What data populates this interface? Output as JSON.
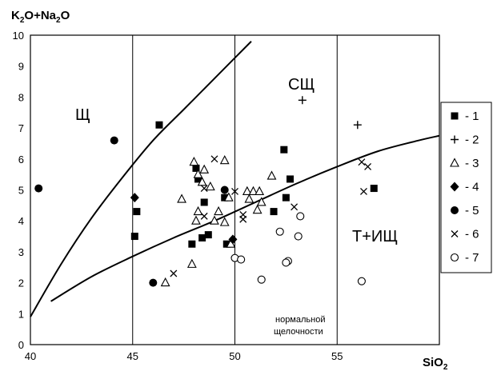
{
  "chart_data": {
    "type": "scatter",
    "ylabel": {
      "main": "K",
      "sub1": "2",
      "mid": "O+Na",
      "sub2": "2",
      "end": "O"
    },
    "xlabel": {
      "main": "SiO",
      "sub": "2"
    },
    "xlim": [
      40,
      60
    ],
    "ylim": [
      0,
      10
    ],
    "x_ticks": [
      "40",
      "45",
      "50",
      "55"
    ],
    "y_ticks": [
      "0",
      "1",
      "2",
      "3",
      "4",
      "5",
      "6",
      "7",
      "8",
      "9",
      "10"
    ],
    "grid": "vertical lines at 45, 50, 55",
    "regions": {
      "shch": "Щ",
      "sshch": "СЩ",
      "tishch": "Т+ИЩ",
      "normal_line1": "нормальной",
      "normal_line2": "щелочности"
    },
    "curves": [
      {
        "points": [
          [
            40.0,
            0.9
          ],
          [
            41.5,
            2.6
          ],
          [
            43.0,
            4.1
          ],
          [
            44.5,
            5.4
          ],
          [
            46.0,
            6.6
          ],
          [
            47.5,
            7.6
          ],
          [
            49.0,
            8.6
          ],
          [
            50.8,
            9.8
          ]
        ]
      },
      {
        "points": [
          [
            41.0,
            1.4
          ],
          [
            43.0,
            2.2
          ],
          [
            45.0,
            2.85
          ],
          [
            47.0,
            3.45
          ],
          [
            49.0,
            4.0
          ],
          [
            51.0,
            4.6
          ],
          [
            53.0,
            5.2
          ],
          [
            55.0,
            5.75
          ],
          [
            57.0,
            6.25
          ],
          [
            59.0,
            6.6
          ],
          [
            60.0,
            6.75
          ]
        ]
      }
    ],
    "legend": {
      "position": "right",
      "labels": [
        "- 1",
        "- 2",
        "- 3",
        "- 4",
        "- 5",
        "- 6",
        "- 7"
      ]
    },
    "series": [
      {
        "marker": "filled-square",
        "points": [
          [
            46.3,
            7.1
          ],
          [
            52.4,
            6.3
          ],
          [
            48.1,
            5.7
          ],
          [
            48.2,
            5.35
          ],
          [
            52.7,
            5.35
          ],
          [
            56.8,
            5.05
          ],
          [
            49.5,
            4.75
          ],
          [
            48.5,
            4.6
          ],
          [
            52.5,
            4.75
          ],
          [
            45.2,
            4.3
          ],
          [
            51.9,
            4.3
          ],
          [
            45.1,
            3.5
          ],
          [
            48.7,
            3.55
          ],
          [
            48.4,
            3.45
          ],
          [
            47.9,
            3.25
          ],
          [
            49.6,
            3.25
          ]
        ]
      },
      {
        "marker": "plus",
        "points": [
          [
            53.3,
            7.9
          ],
          [
            56.0,
            7.1
          ]
        ]
      },
      {
        "marker": "open-triangle",
        "points": [
          [
            48.0,
            5.9
          ],
          [
            49.5,
            5.95
          ],
          [
            48.5,
            5.65
          ],
          [
            48.2,
            5.5
          ],
          [
            51.8,
            5.45
          ],
          [
            48.4,
            5.25
          ],
          [
            48.8,
            5.1
          ],
          [
            47.4,
            4.7
          ],
          [
            50.6,
            4.95
          ],
          [
            50.9,
            4.95
          ],
          [
            51.2,
            4.95
          ],
          [
            50.7,
            4.7
          ],
          [
            49.7,
            4.75
          ],
          [
            51.3,
            4.6
          ],
          [
            48.2,
            4.3
          ],
          [
            49.2,
            4.3
          ],
          [
            51.1,
            4.35
          ],
          [
            48.1,
            4.0
          ],
          [
            49.0,
            4.0
          ],
          [
            49.5,
            3.95
          ],
          [
            49.8,
            3.25
          ],
          [
            47.9,
            2.6
          ],
          [
            46.6,
            2.0
          ]
        ]
      },
      {
        "marker": "filled-diamond",
        "points": [
          [
            45.1,
            4.75
          ],
          [
            49.9,
            3.4
          ]
        ]
      },
      {
        "marker": "filled-circle",
        "points": [
          [
            44.1,
            6.6
          ],
          [
            40.4,
            5.05
          ],
          [
            49.5,
            5.0
          ],
          [
            46.0,
            2.0
          ]
        ]
      },
      {
        "marker": "cross",
        "points": [
          [
            49.0,
            6.0
          ],
          [
            56.2,
            5.9
          ],
          [
            56.5,
            5.75
          ],
          [
            48.5,
            5.05
          ],
          [
            50.0,
            4.95
          ],
          [
            52.9,
            4.45
          ],
          [
            56.3,
            4.95
          ],
          [
            48.5,
            4.15
          ],
          [
            50.4,
            4.2
          ],
          [
            50.4,
            4.05
          ],
          [
            47.0,
            2.3
          ]
        ]
      },
      {
        "marker": "open-circle",
        "points": [
          [
            53.2,
            4.15
          ],
          [
            52.2,
            3.65
          ],
          [
            53.1,
            3.5
          ],
          [
            50.0,
            2.8
          ],
          [
            50.3,
            2.75
          ],
          [
            52.6,
            2.7
          ],
          [
            52.5,
            2.65
          ],
          [
            51.3,
            2.1
          ],
          [
            56.2,
            2.05
          ]
        ]
      }
    ]
  }
}
